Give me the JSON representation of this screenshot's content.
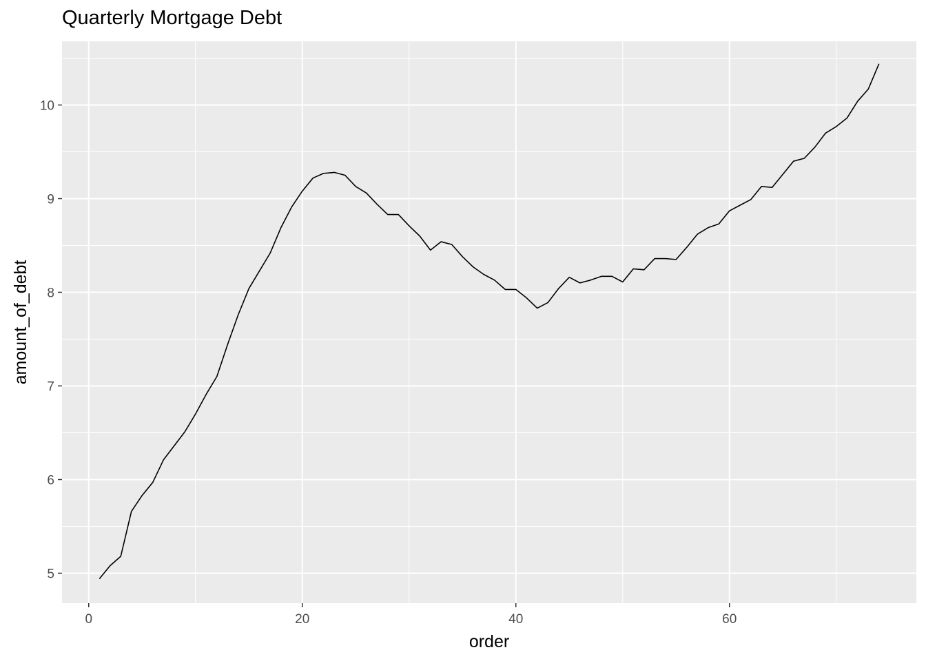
{
  "chart_data": {
    "type": "line",
    "title": "Quarterly Mortgage Debt",
    "xlabel": "order",
    "ylabel": "amount_of_debt",
    "xlim": [
      -2.5,
      77.5
    ],
    "ylim": [
      4.68,
      10.68
    ],
    "x_ticks": [
      0,
      20,
      40,
      60
    ],
    "x_tick_labels": [
      "0",
      "20",
      "40",
      "60"
    ],
    "x_minor_ticks": [
      10,
      30,
      50,
      70
    ],
    "y_ticks": [
      5,
      6,
      7,
      8,
      9,
      10
    ],
    "y_tick_labels": [
      "5",
      "6",
      "7",
      "8",
      "9",
      "10"
    ],
    "y_minor_ticks": [
      5.5,
      6.5,
      7.5,
      8.5,
      9.5,
      10.5
    ],
    "grid": true,
    "legend": "none",
    "colors": {
      "panel": "#ebebeb",
      "grid": "#ffffff",
      "line": "#000000",
      "tick_text": "#4d4d4d"
    },
    "series": [
      {
        "x": [
          1,
          2,
          3,
          4,
          5,
          6,
          7,
          8,
          9,
          10,
          11,
          12,
          13,
          14,
          15,
          16,
          17,
          18,
          19,
          20,
          21,
          22,
          23,
          24,
          25,
          26,
          27,
          28,
          29,
          30,
          31,
          32,
          33,
          34,
          35,
          36,
          37,
          38,
          39,
          40,
          41,
          42,
          43,
          44,
          45,
          46,
          47,
          48,
          49,
          50,
          51,
          52,
          53,
          54,
          55,
          56,
          57,
          58,
          59,
          60,
          61,
          62,
          63,
          64,
          65,
          66,
          67,
          68,
          69,
          70,
          71,
          72,
          73,
          74
        ],
        "values": [
          4.94,
          5.08,
          5.18,
          5.66,
          5.83,
          5.97,
          6.21,
          6.36,
          6.51,
          6.7,
          6.91,
          7.1,
          7.44,
          7.76,
          8.04,
          8.23,
          8.42,
          8.69,
          8.91,
          9.08,
          9.22,
          9.27,
          9.28,
          9.25,
          9.13,
          9.06,
          8.94,
          8.83,
          8.83,
          8.71,
          8.6,
          8.45,
          8.54,
          8.51,
          8.38,
          8.27,
          8.19,
          8.13,
          8.03,
          8.03,
          7.94,
          7.83,
          7.89,
          8.04,
          8.16,
          8.1,
          8.13,
          8.17,
          8.17,
          8.11,
          8.25,
          8.24,
          8.36,
          8.36,
          8.35,
          8.48,
          8.62,
          8.69,
          8.73,
          8.87,
          8.93,
          8.99,
          9.13,
          9.12,
          9.26,
          9.4,
          9.43,
          9.55,
          9.7,
          9.77,
          9.86,
          10.04,
          10.17,
          10.44
        ]
      }
    ]
  }
}
